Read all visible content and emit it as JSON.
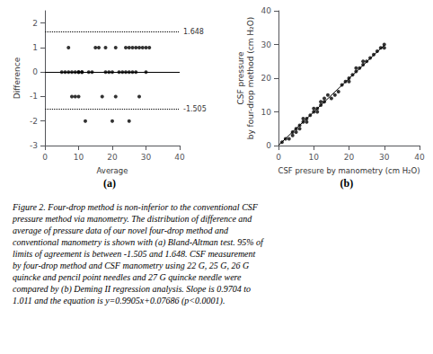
{
  "chart_data": [
    {
      "type": "scatter",
      "title": "(a)",
      "xlabel": "Average",
      "ylabel": "Difference",
      "x": [
        5,
        6,
        7,
        7,
        8,
        8,
        9,
        9,
        10,
        10,
        10,
        11,
        11,
        12,
        13,
        14,
        15,
        16,
        17,
        18,
        18,
        19,
        20,
        20,
        21,
        21,
        22,
        23,
        24,
        24,
        25,
        25,
        25,
        26,
        26,
        27,
        27,
        28,
        28,
        29,
        30,
        30,
        31
      ],
      "values": [
        0,
        0,
        1,
        0,
        -1,
        0,
        -1,
        0,
        -1,
        0,
        0,
        0,
        0,
        -2,
        0,
        0,
        1,
        1,
        -1,
        0,
        1,
        0,
        -2,
        0,
        -1,
        1,
        0,
        0,
        0,
        1,
        0,
        -2,
        1,
        0,
        1,
        0,
        1,
        -1,
        1,
        1,
        0,
        1,
        1
      ],
      "color": "black",
      "reference_lines": [
        {
          "y": 0,
          "color": "black",
          "line_style": "solid"
        },
        {
          "y": 1.648,
          "color": "black",
          "line_style": "dotted"
        },
        {
          "y": -1.505,
          "color": "black",
          "line_style": "dotted"
        }
      ],
      "annotations": [
        {
          "text": "1.648",
          "y": 1.648
        },
        {
          "text": "-1.505",
          "y": -1.505
        }
      ],
      "xlim": [
        0,
        40
      ],
      "ylim": [
        -3,
        2.5
      ],
      "xticks": [
        0,
        10,
        20,
        30,
        40
      ],
      "yticks": [
        -3,
        -2,
        -1,
        0,
        1,
        2
      ],
      "grid": false
    },
    {
      "type": "scatter",
      "title": "(b)",
      "xlabel": "CSF presure by manometry (cm H₂O)",
      "ylabel": "CSF pressure\nby four-drop method (cm H₂O)",
      "series": [
        {
          "type": "scatter",
          "color": "black",
          "x": [
            1,
            2,
            3,
            4,
            4,
            5,
            5,
            6,
            6,
            7,
            7,
            8,
            8,
            9,
            10,
            10,
            11,
            11,
            12,
            12,
            13,
            13,
            14,
            15,
            16,
            17,
            18,
            19,
            20,
            20,
            21,
            22,
            22,
            23,
            24,
            24,
            25,
            26,
            27,
            28,
            29,
            30,
            30
          ],
          "values": [
            1,
            2,
            2,
            3,
            4,
            4,
            5,
            5,
            6,
            7,
            8,
            7,
            8,
            9,
            10,
            11,
            10,
            11,
            12,
            13,
            13,
            14,
            15,
            14,
            15,
            16,
            18,
            19,
            19,
            20,
            21,
            22,
            23,
            23,
            24,
            25,
            25,
            26,
            27,
            28,
            29,
            29,
            30
          ]
        },
        {
          "type": "line",
          "color": "black",
          "line_style": "solid",
          "x": [
            0,
            30
          ],
          "values": [
            0.07686,
            29.79186
          ]
        }
      ],
      "xlim": [
        0,
        40
      ],
      "ylim": [
        0,
        40
      ],
      "xticks": [
        0,
        10,
        20,
        30,
        40
      ],
      "yticks": [
        0,
        10,
        20,
        30,
        40
      ],
      "grid": false
    }
  ],
  "caption": "Figure 2. Four-drop method is non-inferior to the conventional CSF\npressure method via manometry. The distribution of difference and\naverage of pressure data of our novel four-drop method and\nconventional manometry is shown with (a) Bland-Altman test. 95% of\nlimits of agreement is between -1.505 and 1.648. CSF measurement\nby four-drop method and CSF manometry using 22 G, 25 G, 26 G\nquincke and pencil point needles and 27 G quincke needle were\ncompared by (b) Deming II regression analysis. Slope is 0.9704 to\n1.011 and the equation is y=0.9905x+0.07686 (p<0.0001)."
}
